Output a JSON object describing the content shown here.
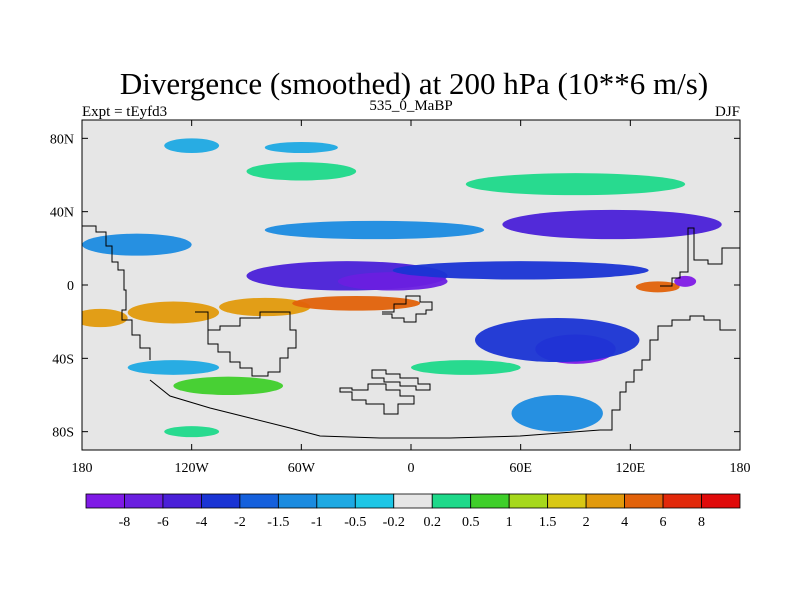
{
  "chart_data": {
    "type": "heatmap",
    "title": "Divergence (smoothed) at 200 hPa (10**6 m/s)",
    "left_label": "Expt = tEyfd3",
    "center_label": "535_0_MaBP",
    "right_label": "DJF",
    "x_range": [
      -180,
      180
    ],
    "y_range": [
      -90,
      90
    ],
    "x_ticks": [
      {
        "value": -180,
        "label": "180"
      },
      {
        "value": -120,
        "label": "120W"
      },
      {
        "value": -60,
        "label": "60W"
      },
      {
        "value": 0,
        "label": "0"
      },
      {
        "value": 60,
        "label": "60E"
      },
      {
        "value": 120,
        "label": "120E"
      },
      {
        "value": 180,
        "label": "180"
      }
    ],
    "y_ticks": [
      {
        "value": 80,
        "label": "80N"
      },
      {
        "value": 40,
        "label": "40N"
      },
      {
        "value": 0,
        "label": "0"
      },
      {
        "value": -40,
        "label": "40S"
      },
      {
        "value": -80,
        "label": "80S"
      }
    ],
    "colorbar": {
      "levels": [
        "-8",
        "-6",
        "-4",
        "-2",
        "-1.5",
        "-1",
        "-0.5",
        "-0.2",
        "0.2",
        "0.5",
        "1",
        "1.5",
        "2",
        "4",
        "6",
        "8"
      ],
      "colors": [
        "#7f1ae6",
        "#6a1fe0",
        "#4a20d8",
        "#1a34d4",
        "#1560dc",
        "#1b8be0",
        "#1ea9e3",
        "#1dc6e6",
        "#e6e6e6",
        "#1ed98a",
        "#3fcf2a",
        "#a6d81c",
        "#d8c814",
        "#e29a0c",
        "#e2620a",
        "#e2280a",
        "#e00a0a"
      ]
    },
    "anomalies": [
      {
        "lon": -35,
        "lat": 5,
        "rlon": 55,
        "rlat": 8,
        "value": -4
      },
      {
        "lon": -10,
        "lat": 2,
        "rlon": 30,
        "rlat": 5,
        "value": -6
      },
      {
        "lon": 60,
        "lat": 8,
        "rlon": 70,
        "rlat": 5,
        "value": -2
      },
      {
        "lon": 110,
        "lat": 33,
        "rlon": 60,
        "rlat": 8,
        "value": -4
      },
      {
        "lon": -150,
        "lat": 22,
        "rlon": 30,
        "rlat": 6,
        "value": -1
      },
      {
        "lon": -20,
        "lat": 30,
        "rlon": 60,
        "rlat": 5,
        "value": -1
      },
      {
        "lon": 90,
        "lat": 55,
        "rlon": 60,
        "rlat": 6,
        "value": 0.5
      },
      {
        "lon": -60,
        "lat": 62,
        "rlon": 30,
        "rlat": 5,
        "value": 0.5
      },
      {
        "lon": -80,
        "lat": -12,
        "rlon": 25,
        "rlat": 5,
        "value": 4
      },
      {
        "lon": -130,
        "lat": -15,
        "rlon": 25,
        "rlat": 6,
        "value": 4
      },
      {
        "lon": -170,
        "lat": -18,
        "rlon": 15,
        "rlat": 5,
        "value": 4
      },
      {
        "lon": -30,
        "lat": -10,
        "rlon": 35,
        "rlat": 4,
        "value": 6
      },
      {
        "lon": 135,
        "lat": -1,
        "rlon": 12,
        "rlat": 3,
        "value": 6
      },
      {
        "lon": 150,
        "lat": 2,
        "rlon": 6,
        "rlat": 3,
        "value": -8
      },
      {
        "lon": 90,
        "lat": -35,
        "rlon": 22,
        "rlat": 8,
        "value": -8
      },
      {
        "lon": 80,
        "lat": -30,
        "rlon": 45,
        "rlat": 12,
        "value": -2
      },
      {
        "lon": -100,
        "lat": -55,
        "rlon": 30,
        "rlat": 5,
        "value": 1
      },
      {
        "lon": -130,
        "lat": -45,
        "rlon": 25,
        "rlat": 4,
        "value": -0.5
      },
      {
        "lon": 30,
        "lat": -45,
        "rlon": 30,
        "rlat": 4,
        "value": 0.5
      },
      {
        "lon": -120,
        "lat": -80,
        "rlon": 15,
        "rlat": 3,
        "value": 0.5
      },
      {
        "lon": 80,
        "lat": -70,
        "rlon": 25,
        "rlat": 10,
        "value": -1
      },
      {
        "lon": -60,
        "lat": 75,
        "rlon": 20,
        "rlat": 3,
        "value": -0.5
      },
      {
        "lon": -120,
        "lat": 76,
        "rlon": 15,
        "rlat": 4,
        "value": -0.5
      }
    ]
  }
}
